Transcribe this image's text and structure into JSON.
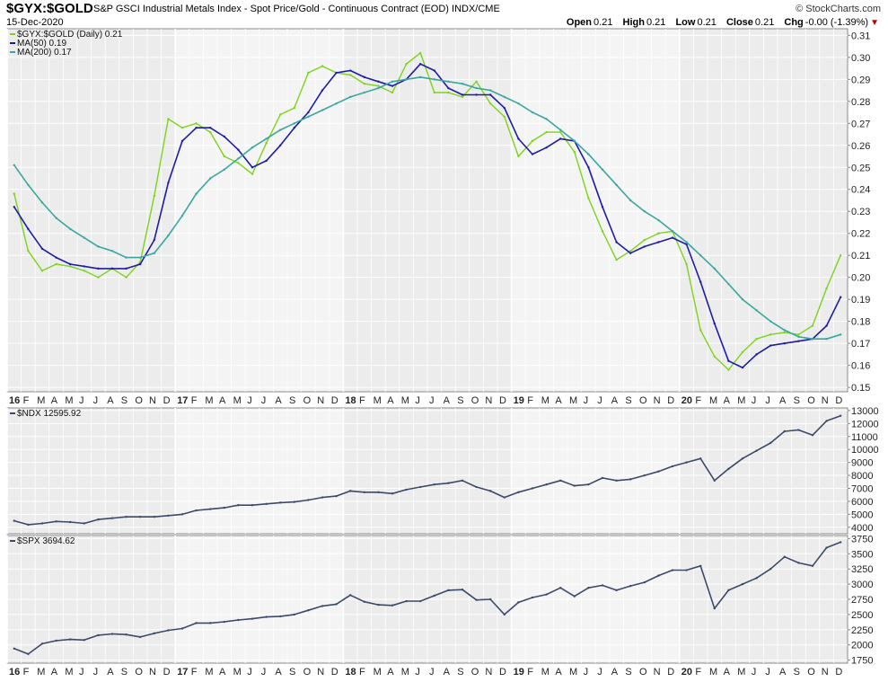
{
  "header": {
    "symbol": "$GYX:$GOLD",
    "description": "S&P GSCI Industrial Metals Index - Spot Price/Gold - Continuous Contract (EOD)",
    "exchange": "INDX/CME",
    "date": "15-Dec-2020",
    "brand": "© StockCharts.com",
    "ohlc": {
      "open_label": "Open",
      "open": "0.21",
      "high_label": "High",
      "high": "0.21",
      "low_label": "Low",
      "low": "0.21",
      "close_label": "Close",
      "close": "0.21",
      "chg_label": "Chg",
      "chg": "-0.00 (-1.39%)"
    },
    "change_color": "#c00000"
  },
  "colors": {
    "price_line": "#7cd31a",
    "ma50_line": "#1c1ca8",
    "ma200_line": "#3aa6a0",
    "index_line": "#3c4a6a",
    "panel_bg": "#ececec",
    "panel_bg_alt": "#f4f4f4",
    "grid": "#ffffff"
  },
  "chart_data": [
    {
      "type": "line",
      "panel": "main",
      "legend": [
        {
          "label": "$GYX:$GOLD (Daily) 0.21",
          "color": "#7cd31a"
        },
        {
          "label": "MA(50) 0.19",
          "color": "#1c1ca8"
        },
        {
          "label": "MA(200) 0.17",
          "color": "#3aa6a0"
        }
      ],
      "legend_position": "top-left",
      "x_ticks": [
        "16",
        "F",
        "M",
        "A",
        "M",
        "J",
        "J",
        "A",
        "S",
        "O",
        "N",
        "D",
        "17",
        "F",
        "M",
        "A",
        "M",
        "J",
        "J",
        "A",
        "S",
        "O",
        "N",
        "D",
        "18",
        "F",
        "M",
        "A",
        "M",
        "J",
        "J",
        "A",
        "S",
        "O",
        "N",
        "D",
        "19",
        "F",
        "M",
        "A",
        "M",
        "J",
        "J",
        "A",
        "S",
        "O",
        "N",
        "D",
        "20",
        "F",
        "M",
        "A",
        "M",
        "J",
        "J",
        "A",
        "S",
        "O",
        "N",
        "D"
      ],
      "x": [
        "2016-01",
        "2016-02",
        "2016-03",
        "2016-04",
        "2016-05",
        "2016-06",
        "2016-07",
        "2016-08",
        "2016-09",
        "2016-10",
        "2016-11",
        "2016-12",
        "2017-01",
        "2017-02",
        "2017-03",
        "2017-04",
        "2017-05",
        "2017-06",
        "2017-07",
        "2017-08",
        "2017-09",
        "2017-10",
        "2017-11",
        "2017-12",
        "2018-01",
        "2018-02",
        "2018-03",
        "2018-04",
        "2018-05",
        "2018-06",
        "2018-07",
        "2018-08",
        "2018-09",
        "2018-10",
        "2018-11",
        "2018-12",
        "2019-01",
        "2019-02",
        "2019-03",
        "2019-04",
        "2019-05",
        "2019-06",
        "2019-07",
        "2019-08",
        "2019-09",
        "2019-10",
        "2019-11",
        "2019-12",
        "2020-01",
        "2020-02",
        "2020-03",
        "2020-04",
        "2020-05",
        "2020-06",
        "2020-07",
        "2020-08",
        "2020-09",
        "2020-10",
        "2020-11",
        "2020-12"
      ],
      "y_ticks": [
        "0.31",
        "0.30",
        "0.29",
        "0.28",
        "0.27",
        "0.26",
        "0.25",
        "0.24",
        "0.23",
        "0.22",
        "0.21",
        "0.20",
        "0.19",
        "0.18",
        "0.17",
        "0.16",
        "0.15"
      ],
      "ylim": [
        0.148,
        0.313
      ],
      "y_scale": "linear",
      "grid": true,
      "series": [
        {
          "name": "$GYX:$GOLD (Daily) 0.21",
          "values": [
            0.238,
            0.212,
            0.203,
            0.206,
            0.205,
            0.203,
            0.2,
            0.204,
            0.2,
            0.207,
            0.237,
            0.272,
            0.268,
            0.27,
            0.266,
            0.255,
            0.252,
            0.247,
            0.261,
            0.274,
            0.277,
            0.293,
            0.296,
            0.293,
            0.292,
            0.288,
            0.287,
            0.284,
            0.297,
            0.302,
            0.284,
            0.284,
            0.282,
            0.289,
            0.279,
            0.273,
            0.255,
            0.262,
            0.266,
            0.266,
            0.257,
            0.236,
            0.221,
            0.208,
            0.212,
            0.217,
            0.22,
            0.221,
            0.206,
            0.176,
            0.164,
            0.158,
            0.166,
            0.172,
            0.174,
            0.175,
            0.174,
            0.178,
            0.195,
            0.21
          ]
        },
        {
          "name": "MA(50) 0.19",
          "values": [
            0.232,
            0.222,
            0.213,
            0.209,
            0.206,
            0.205,
            0.204,
            0.204,
            0.204,
            0.206,
            0.217,
            0.243,
            0.262,
            0.268,
            0.268,
            0.264,
            0.258,
            0.25,
            0.253,
            0.26,
            0.268,
            0.275,
            0.285,
            0.293,
            0.294,
            0.291,
            0.289,
            0.287,
            0.29,
            0.297,
            0.294,
            0.286,
            0.283,
            0.283,
            0.283,
            0.277,
            0.263,
            0.256,
            0.259,
            0.263,
            0.262,
            0.25,
            0.232,
            0.216,
            0.211,
            0.214,
            0.216,
            0.218,
            0.215,
            0.198,
            0.179,
            0.162,
            0.159,
            0.165,
            0.169,
            0.17,
            0.171,
            0.172,
            0.178,
            0.191
          ]
        },
        {
          "name": "MA(200) 0.17",
          "values": [
            0.251,
            0.242,
            0.234,
            0.227,
            0.222,
            0.218,
            0.214,
            0.212,
            0.209,
            0.209,
            0.211,
            0.219,
            0.228,
            0.238,
            0.245,
            0.249,
            0.254,
            0.259,
            0.263,
            0.267,
            0.27,
            0.273,
            0.276,
            0.279,
            0.282,
            0.284,
            0.286,
            0.289,
            0.29,
            0.291,
            0.29,
            0.289,
            0.288,
            0.286,
            0.285,
            0.282,
            0.279,
            0.275,
            0.272,
            0.267,
            0.262,
            0.256,
            0.249,
            0.242,
            0.235,
            0.23,
            0.226,
            0.221,
            0.216,
            0.21,
            0.204,
            0.197,
            0.19,
            0.185,
            0.18,
            0.176,
            0.173,
            0.172,
            0.172,
            0.174
          ]
        }
      ]
    },
    {
      "type": "line",
      "panel": "ndx",
      "legend": [
        {
          "label": "$NDX 12595.92",
          "color": "#3c4a6a"
        }
      ],
      "legend_position": "top-left",
      "y_ticks": [
        "13000",
        "12000",
        "11000",
        "10000",
        "9000",
        "8000",
        "7000",
        "6000",
        "5000",
        "4000"
      ],
      "ylim": [
        3500,
        13200
      ],
      "y_scale": "linear",
      "grid": true,
      "series": [
        {
          "name": "$NDX 12595.92",
          "values": [
            4500,
            4200,
            4300,
            4450,
            4400,
            4300,
            4600,
            4700,
            4800,
            4800,
            4800,
            4900,
            5000,
            5300,
            5400,
            5500,
            5700,
            5700,
            5800,
            5900,
            5950,
            6100,
            6300,
            6400,
            6800,
            6700,
            6700,
            6600,
            6900,
            7100,
            7300,
            7400,
            7600,
            7100,
            6800,
            6300,
            6700,
            7000,
            7300,
            7600,
            7200,
            7300,
            7800,
            7600,
            7700,
            8000,
            8300,
            8700,
            9000,
            9300,
            7600,
            8500,
            9300,
            9900,
            10500,
            11400,
            11500,
            11100,
            12200,
            12600
          ]
        }
      ]
    },
    {
      "type": "line",
      "panel": "spx",
      "legend": [
        {
          "label": "$SPX 3694.62",
          "color": "#3c4a6a"
        }
      ],
      "legend_position": "top-left",
      "y_ticks": [
        "3750",
        "3500",
        "3250",
        "3000",
        "2750",
        "2500",
        "2250",
        "2000",
        "1750"
      ],
      "ylim": [
        1700,
        3800
      ],
      "y_scale": "linear",
      "grid": true,
      "series": [
        {
          "name": "$SPX 3694.62",
          "values": [
            1940,
            1850,
            2020,
            2070,
            2090,
            2080,
            2160,
            2180,
            2170,
            2130,
            2190,
            2240,
            2270,
            2360,
            2360,
            2380,
            2410,
            2430,
            2460,
            2470,
            2500,
            2570,
            2640,
            2670,
            2820,
            2710,
            2660,
            2650,
            2720,
            2720,
            2810,
            2900,
            2910,
            2740,
            2750,
            2500,
            2700,
            2780,
            2830,
            2940,
            2800,
            2940,
            2980,
            2900,
            2970,
            3030,
            3140,
            3230,
            3230,
            3300,
            2600,
            2900,
            3000,
            3100,
            3250,
            3450,
            3350,
            3300,
            3600,
            3690
          ]
        }
      ]
    }
  ]
}
